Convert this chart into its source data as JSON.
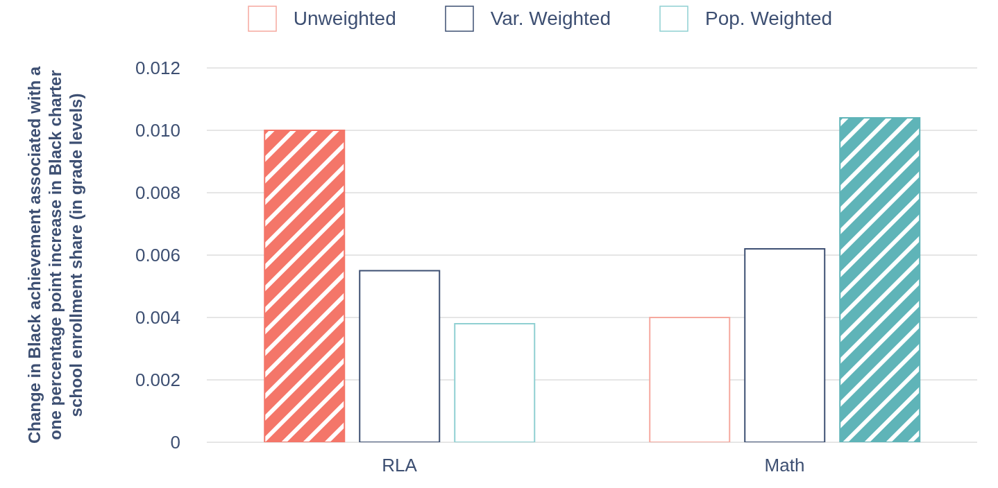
{
  "chart_data": {
    "type": "bar",
    "ylabel": "Change in Black achievement associated with a one percentage point increase in Black charter school enrollment share (in grade levels)",
    "categories": [
      "RLA",
      "Math"
    ],
    "series": [
      {
        "name": "Unweighted",
        "color": "#f6a89e",
        "colors": [
          "#f47669",
          "#f6a89e"
        ],
        "values": [
          0.01,
          0.004
        ]
      },
      {
        "name": "Var. Weighted",
        "color": "#3d4f72",
        "colors": [
          "#3d4f72",
          "#3d4f72"
        ],
        "values": [
          0.0055,
          0.0062
        ]
      },
      {
        "name": "Pop. Weighted",
        "color": "#8fd0d2",
        "colors": [
          "#8fd0d2",
          "#5fb4b8"
        ],
        "values": [
          0.0038,
          0.0104
        ]
      }
    ],
    "ylim": [
      0,
      0.012
    ],
    "yticks": [
      {
        "value": 0,
        "label": "0"
      },
      {
        "value": 0.002,
        "label": "0.002"
      },
      {
        "value": 0.004,
        "label": "0.004"
      },
      {
        "value": 0.006,
        "label": "0.006"
      },
      {
        "value": 0.008,
        "label": "0.008"
      },
      {
        "value": 0.01,
        "label": "0.010"
      },
      {
        "value": 0.012,
        "label": "0.012"
      }
    ],
    "grid": "y",
    "legend": "top"
  }
}
